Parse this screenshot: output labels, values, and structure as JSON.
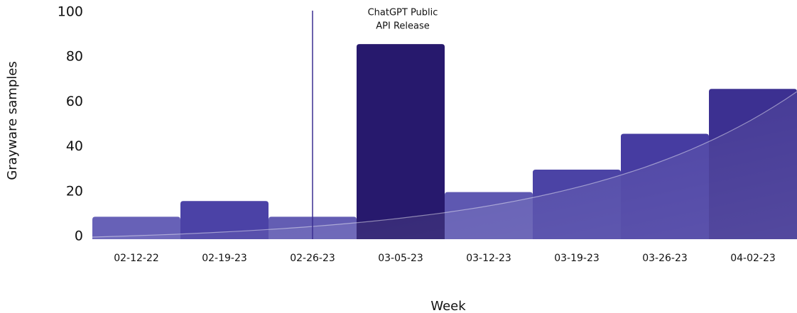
{
  "chart_data": {
    "type": "bar",
    "categories": [
      "02-12-22",
      "02-19-23",
      "02-26-23",
      "03-05-23",
      "03-12-23",
      "03-19-23",
      "03-26-23",
      "04-02-23"
    ],
    "values": [
      10,
      17,
      10,
      87,
      21,
      31,
      47,
      67
    ],
    "colors": [
      "#6761b7",
      "#4b42a6",
      "#635db3",
      "#27196d",
      "#5e58b1",
      "#4b43a5",
      "#463ca1",
      "#3c3091"
    ],
    "ylim": [
      0,
      100
    ],
    "yticks": [
      0,
      20,
      40,
      60,
      80,
      100
    ],
    "grid": false,
    "xlabel": "Week",
    "ylabel": "Grayware samples",
    "annotation": {
      "x": "02-26-23",
      "text": [
        "ChatGPT Public",
        "API Release"
      ]
    }
  }
}
